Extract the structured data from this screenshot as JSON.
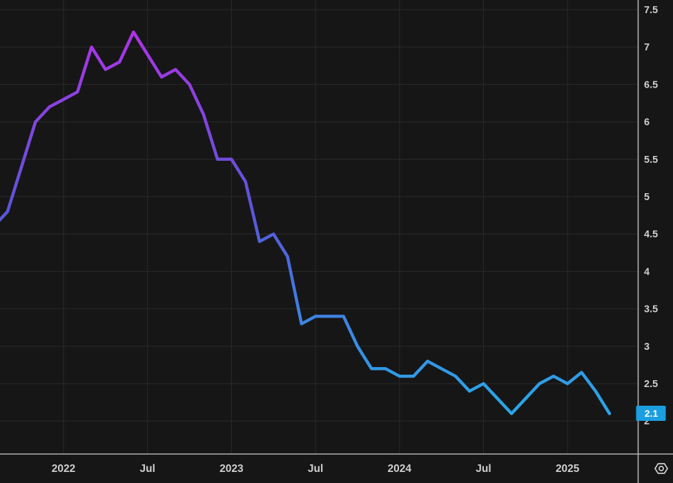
{
  "chart_data": {
    "type": "line",
    "title": "",
    "legend": "none",
    "grid": true,
    "y_axis_side": "right",
    "ylim": [
      1.56,
      7.63
    ],
    "y_ticks": [
      7.5,
      7,
      6.5,
      6,
      5.5,
      5,
      4.5,
      4,
      3.5,
      3,
      2.5,
      2
    ],
    "x_ticks": [
      {
        "label": "2022",
        "month": "2022-01"
      },
      {
        "label": "Jul",
        "month": "2022-07"
      },
      {
        "label": "2023",
        "month": "2023-01"
      },
      {
        "label": "Jul",
        "month": "2023-07"
      },
      {
        "label": "2024",
        "month": "2024-01"
      },
      {
        "label": "Jul",
        "month": "2024-07"
      },
      {
        "label": "2025",
        "month": "2025-01"
      }
    ],
    "series": [
      {
        "name": "monthly-value",
        "x": [
          "2021-08",
          "2021-09",
          "2021-10",
          "2021-11",
          "2021-12",
          "2022-01",
          "2022-02",
          "2022-03",
          "2022-04",
          "2022-05",
          "2022-06",
          "2022-07",
          "2022-08",
          "2022-09",
          "2022-10",
          "2022-11",
          "2022-12",
          "2023-01",
          "2023-02",
          "2023-03",
          "2023-04",
          "2023-05",
          "2023-06",
          "2023-07",
          "2023-08",
          "2023-09",
          "2023-10",
          "2023-11",
          "2023-12",
          "2024-01",
          "2024-02",
          "2024-03",
          "2024-04",
          "2024-05",
          "2024-06",
          "2024-07",
          "2024-08",
          "2024-09",
          "2024-10",
          "2024-11",
          "2024-12",
          "2025-01",
          "2025-02",
          "2025-03",
          "2025-04"
        ],
        "values": [
          4.6,
          4.8,
          5.4,
          6.0,
          6.2,
          6.3,
          6.4,
          7.0,
          6.7,
          6.8,
          7.2,
          6.9,
          6.6,
          6.7,
          6.5,
          6.1,
          5.5,
          5.5,
          5.2,
          4.4,
          4.5,
          4.2,
          3.3,
          3.4,
          3.4,
          3.4,
          3.0,
          2.7,
          2.7,
          2.6,
          2.6,
          2.8,
          2.7,
          2.6,
          2.4,
          2.5,
          2.3,
          2.1,
          2.3,
          2.5,
          2.6,
          2.5,
          2.65,
          2.4,
          2.1
        ]
      }
    ],
    "last_value_badge": "2.1"
  },
  "colors": {
    "background": "#161616",
    "gridline": "#2a2a2a",
    "axis_line": "#b3b3b3",
    "tick_label": "#cfcfcf",
    "badge_background": "#1b9fe0",
    "badge_text": "#ffffff",
    "settings_icon": "#d2d2d2",
    "line_gradient": [
      {
        "offset": 0.0,
        "color": "#bb2fea"
      },
      {
        "offset": 0.1,
        "color": "#a736e6"
      },
      {
        "offset": 0.24,
        "color": "#8843e0"
      },
      {
        "offset": 0.46,
        "color": "#5b55d9"
      },
      {
        "offset": 0.62,
        "color": "#4672de"
      },
      {
        "offset": 0.75,
        "color": "#3a8ce3"
      },
      {
        "offset": 0.88,
        "color": "#2ba3e7"
      },
      {
        "offset": 1.0,
        "color": "#27ace9"
      }
    ]
  }
}
